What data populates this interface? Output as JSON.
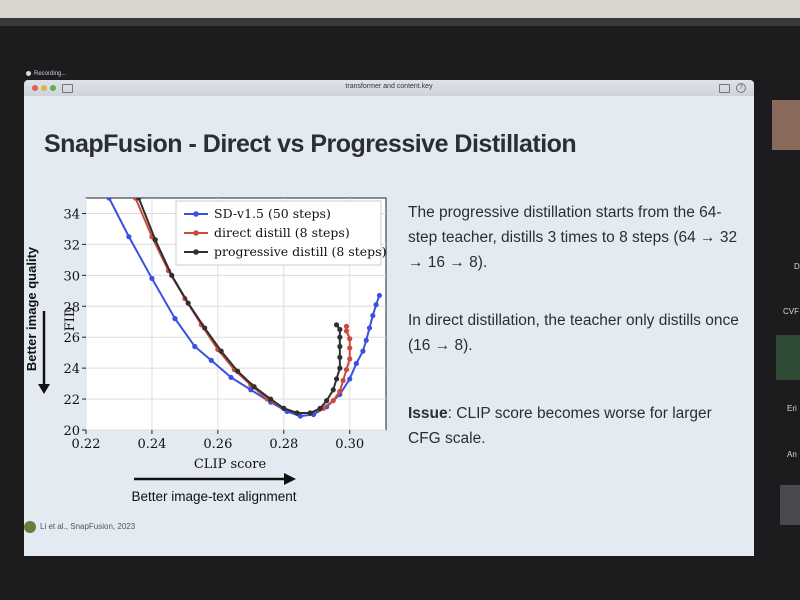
{
  "recording": "Recording...",
  "window": {
    "title": "transformer and content.key"
  },
  "slide": {
    "title": "SnapFusion - Direct vs Progressive Distillation",
    "para1": "The progressive distillation starts from the 64-step teacher, distills 3 times to 8 steps (64 → 32 → 16 → 8).",
    "para2": "In direct distillation, the teacher only distills once (16 → 8).",
    "issue_label": "Issue",
    "issue_text": ": CLIP score becomes worse for larger CFG scale.",
    "citation": "Li et al., SnapFusion, 2023",
    "left_arrow_label": "Better image quality",
    "bottom_arrow_label": "Better image-text alignment"
  },
  "side_panel": {
    "labels": [
      "CVF",
      "Eri",
      "An",
      "D"
    ]
  },
  "chart_data": {
    "type": "line",
    "xlabel": "CLIP score",
    "ylabel": "FID",
    "xlim": [
      0.22,
      0.311
    ],
    "ylim": [
      20,
      35
    ],
    "xticks": [
      "0.22",
      "0.24",
      "0.26",
      "0.28",
      "0.30"
    ],
    "yticks": [
      "20",
      "22",
      "24",
      "26",
      "28",
      "30",
      "32",
      "34"
    ],
    "legend_position": "top-right",
    "series": [
      {
        "name": "SD-v1.5 (50 steps)",
        "color": "#3b4fe0",
        "x": [
          0.227,
          0.233,
          0.24,
          0.247,
          0.253,
          0.258,
          0.264,
          0.27,
          0.276,
          0.281,
          0.285,
          0.289,
          0.293,
          0.297,
          0.3,
          0.302,
          0.304,
          0.305,
          0.306,
          0.307,
          0.308,
          0.309
        ],
        "y": [
          35,
          32.5,
          29.8,
          27.2,
          25.4,
          24.5,
          23.4,
          22.6,
          21.8,
          21.2,
          20.9,
          21.0,
          21.5,
          22.3,
          23.3,
          24.3,
          25.1,
          25.8,
          26.6,
          27.4,
          28.1,
          28.7
        ]
      },
      {
        "name": "direct distill (8 steps)",
        "color": "#cc4a3e",
        "x": [
          0.235,
          0.24,
          0.245,
          0.25,
          0.255,
          0.26,
          0.265,
          0.27,
          0.275,
          0.28,
          0.284,
          0.288,
          0.292,
          0.295,
          0.297,
          0.298,
          0.299,
          0.3,
          0.3,
          0.3,
          0.299,
          0.299
        ],
        "y": [
          35,
          32.5,
          30.3,
          28.5,
          26.8,
          25.2,
          23.9,
          22.9,
          22.0,
          21.4,
          21.1,
          21.1,
          21.4,
          21.9,
          22.5,
          23.2,
          23.9,
          24.6,
          25.3,
          25.9,
          26.4,
          26.7
        ]
      },
      {
        "name": "progressive distill (8 steps)",
        "color": "#2f2f2f",
        "x": [
          0.236,
          0.241,
          0.246,
          0.251,
          0.256,
          0.261,
          0.266,
          0.271,
          0.276,
          0.28,
          0.284,
          0.288,
          0.291,
          0.293,
          0.295,
          0.296,
          0.297,
          0.297,
          0.297,
          0.297,
          0.297,
          0.296
        ],
        "y": [
          35,
          32.3,
          30.0,
          28.2,
          26.6,
          25.1,
          23.8,
          22.8,
          22.0,
          21.4,
          21.1,
          21.1,
          21.4,
          21.9,
          22.6,
          23.3,
          24.0,
          24.7,
          25.4,
          26.0,
          26.5,
          26.8
        ]
      }
    ]
  }
}
